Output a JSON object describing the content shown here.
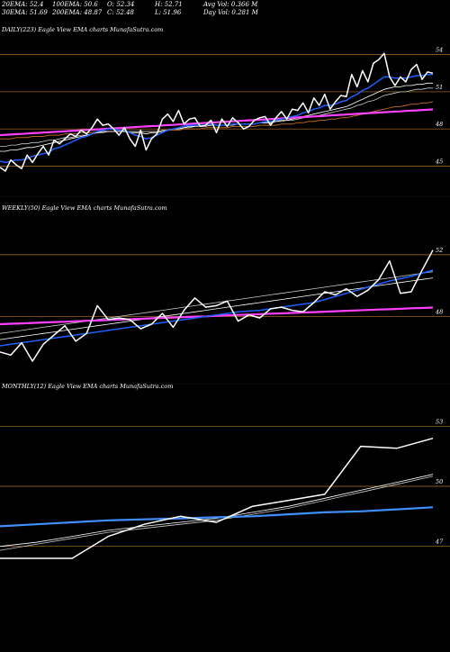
{
  "header": {
    "row1": [
      {
        "label": "20EMA:",
        "value": "52.4"
      },
      {
        "label": "100EMA:",
        "value": "50.6"
      },
      {
        "label": "O:",
        "value": "52.34"
      },
      {
        "label": "H:",
        "value": "52.71"
      },
      {
        "label": "Avg Vol:",
        "value": "0.366  M"
      }
    ],
    "row2": [
      {
        "label": "30EMA:",
        "value": "51.69"
      },
      {
        "label": "200EMA:",
        "value": "48.87"
      },
      {
        "label": "C:",
        "value": "52.48"
      },
      {
        "label": "L:",
        "value": "51.96"
      },
      {
        "label": "Day Vol:",
        "value": "0.281  M"
      }
    ]
  },
  "colors": {
    "background": "#000000",
    "price": "#ffffff",
    "ema_short": "#1f5fff",
    "ema_mid": "#ffffff",
    "ema_mid2": "#c8c8c8",
    "ema_long": "#b5651d",
    "ema_trend": "#ff40ff",
    "monthly_ema": "#3f8fff",
    "gridline": "#b8742a"
  },
  "chart_data": [
    {
      "type": "line",
      "title": "DAILY(223) Eagle   View  EMA charts MunafaSutra.com",
      "ylim": [
        43.0,
        55.5
      ],
      "y_ticks": [
        54,
        51,
        48,
        45
      ],
      "x": [
        0,
        6,
        12,
        18,
        24,
        30,
        36,
        42,
        48,
        54,
        60,
        66,
        72,
        78,
        84,
        90,
        96,
        102,
        108,
        114,
        120,
        126,
        132,
        138,
        144,
        150,
        156,
        162,
        168,
        174,
        180,
        186,
        192,
        198,
        204,
        210,
        216,
        222,
        228,
        234,
        240,
        246,
        252,
        258,
        264,
        270,
        276,
        282,
        288,
        294,
        300,
        306,
        312,
        318,
        324,
        330,
        336,
        342,
        348,
        354,
        360,
        366,
        372,
        378,
        384,
        390,
        396,
        402,
        408,
        414,
        420,
        426,
        432,
        438,
        444,
        450,
        456,
        462,
        468,
        474,
        480
      ],
      "series": [
        {
          "key": "price",
          "values": [
            44.9,
            44.6,
            45.5,
            45.1,
            44.8,
            45.9,
            45.3,
            46.0,
            46.6,
            45.9,
            47.1,
            46.8,
            47.2,
            47.6,
            47.4,
            47.9,
            47.6,
            48.1,
            48.8,
            48.3,
            48.4,
            48.0,
            47.5,
            48.1,
            47.2,
            46.6,
            47.9,
            46.3,
            47.2,
            47.6,
            48.8,
            49.2,
            48.6,
            49.5,
            48.4,
            48.8,
            48.9,
            48.2,
            48.3,
            48.7,
            47.7,
            48.8,
            48.2,
            48.9,
            48.5,
            48.0,
            48.2,
            48.7,
            48.9,
            49.0,
            48.3,
            48.9,
            49.4,
            48.8,
            49.6,
            49.5,
            50.1,
            49.3,
            50.5,
            49.9,
            50.8,
            49.6,
            50.2,
            50.7,
            50.6,
            52.4,
            51.4,
            52.7,
            51.8,
            53.3,
            53.6,
            54.1,
            52.2,
            51.5,
            52.2,
            51.8,
            52.8,
            53.2,
            52.0,
            52.6,
            52.5
          ]
        },
        {
          "key": "ema_short",
          "values": [
            45.4,
            45.3,
            45.4,
            45.5,
            45.5,
            45.6,
            45.8,
            45.9,
            46.0,
            46.1,
            46.4,
            46.5,
            46.7,
            46.9,
            47.1,
            47.3,
            47.4,
            47.6,
            47.8,
            47.9,
            48.0,
            48.0,
            47.9,
            47.9,
            47.7,
            47.5,
            47.4,
            47.2,
            47.3,
            47.5,
            47.7,
            47.9,
            48.0,
            48.1,
            48.2,
            48.3,
            48.3,
            48.3,
            48.3,
            48.4,
            48.3,
            48.3,
            48.3,
            48.4,
            48.4,
            48.4,
            48.4,
            48.4,
            48.5,
            48.6,
            48.6,
            48.7,
            48.8,
            48.9,
            49.0,
            49.1,
            49.3,
            49.4,
            49.6,
            49.7,
            49.9,
            49.9,
            50.0,
            50.2,
            50.3,
            50.6,
            50.8,
            51.1,
            51.3,
            51.6,
            51.9,
            52.2,
            52.2,
            52.1,
            52.1,
            52.1,
            52.2,
            52.3,
            52.3,
            52.4,
            52.4
          ]
        },
        {
          "key": "ema_mid",
          "values": [
            46.2,
            46.2,
            46.3,
            46.3,
            46.4,
            46.5,
            46.5,
            46.6,
            46.7,
            46.8,
            46.9,
            47.0,
            47.1,
            47.2,
            47.3,
            47.4,
            47.5,
            47.6,
            47.7,
            47.8,
            47.8,
            47.8,
            47.8,
            47.8,
            47.7,
            47.7,
            47.7,
            47.6,
            47.7,
            47.7,
            47.8,
            47.9,
            48.0,
            48.0,
            48.1,
            48.2,
            48.2,
            48.3,
            48.3,
            48.3,
            48.3,
            48.3,
            48.3,
            48.4,
            48.4,
            48.4,
            48.4,
            48.4,
            48.5,
            48.5,
            48.5,
            48.6,
            48.7,
            48.7,
            48.8,
            48.9,
            49.0,
            49.1,
            49.2,
            49.3,
            49.4,
            49.5,
            49.6,
            49.7,
            49.8,
            50.0,
            50.2,
            50.4,
            50.6,
            50.8,
            51.0,
            51.2,
            51.3,
            51.4,
            51.4,
            51.5,
            51.5,
            51.6,
            51.6,
            51.7,
            51.7
          ]
        },
        {
          "key": "ema_mid2",
          "values": [
            46.6,
            46.6,
            46.7,
            46.7,
            46.8,
            46.8,
            46.9,
            46.9,
            47.0,
            47.1,
            47.1,
            47.2,
            47.3,
            47.3,
            47.4,
            47.5,
            47.5,
            47.6,
            47.7,
            47.7,
            47.8,
            47.8,
            47.8,
            47.8,
            47.8,
            47.8,
            47.8,
            47.8,
            47.8,
            47.8,
            47.9,
            47.9,
            48.0,
            48.0,
            48.1,
            48.1,
            48.2,
            48.2,
            48.2,
            48.3,
            48.3,
            48.3,
            48.3,
            48.3,
            48.4,
            48.4,
            48.4,
            48.4,
            48.5,
            48.5,
            48.5,
            48.6,
            48.6,
            48.7,
            48.7,
            48.8,
            48.9,
            49.0,
            49.0,
            49.1,
            49.2,
            49.3,
            49.4,
            49.5,
            49.6,
            49.7,
            49.9,
            50.0,
            50.2,
            50.3,
            50.5,
            50.7,
            50.8,
            50.9,
            51.0,
            51.0,
            51.1,
            51.2,
            51.2,
            51.3,
            51.3
          ]
        },
        {
          "key": "ema_long",
          "values": [
            47.2,
            47.2,
            47.2,
            47.3,
            47.3,
            47.3,
            47.4,
            47.4,
            47.4,
            47.5,
            47.5,
            47.5,
            47.6,
            47.6,
            47.6,
            47.7,
            47.7,
            47.7,
            47.8,
            47.8,
            47.8,
            47.8,
            47.8,
            47.8,
            47.8,
            47.8,
            47.8,
            47.8,
            47.8,
            47.8,
            47.9,
            47.9,
            47.9,
            47.9,
            48.0,
            48.0,
            48.0,
            48.0,
            48.1,
            48.1,
            48.1,
            48.1,
            48.1,
            48.2,
            48.2,
            48.2,
            48.2,
            48.2,
            48.3,
            48.3,
            48.3,
            48.3,
            48.4,
            48.4,
            48.4,
            48.5,
            48.5,
            48.6,
            48.6,
            48.7,
            48.7,
            48.8,
            48.8,
            48.9,
            48.9,
            49.0,
            49.1,
            49.2,
            49.3,
            49.4,
            49.5,
            49.6,
            49.7,
            49.8,
            49.8,
            49.9,
            50.0,
            50.0,
            50.1,
            50.1,
            50.2
          ]
        },
        {
          "key": "ema_trend",
          "values": [
            47.5,
            47.53,
            47.55,
            47.58,
            47.6,
            47.63,
            47.66,
            47.68,
            47.71,
            47.73,
            47.76,
            47.79,
            47.81,
            47.84,
            47.86,
            47.89,
            47.92,
            47.94,
            47.97,
            47.99,
            48.02,
            48.05,
            48.07,
            48.1,
            48.12,
            48.15,
            48.18,
            48.2,
            48.23,
            48.25,
            48.28,
            48.31,
            48.33,
            48.36,
            48.38,
            48.41,
            48.44,
            48.46,
            48.49,
            48.51,
            48.54,
            48.57,
            48.59,
            48.62,
            48.64,
            48.67,
            48.7,
            48.72,
            48.75,
            48.77,
            48.8,
            48.83,
            48.85,
            48.88,
            48.9,
            48.93,
            48.96,
            48.98,
            49.01,
            49.03,
            49.06,
            49.09,
            49.11,
            49.14,
            49.16,
            49.19,
            49.22,
            49.24,
            49.27,
            49.29,
            49.32,
            49.35,
            49.37,
            49.4,
            49.42,
            49.45,
            49.48,
            49.5,
            49.53,
            49.55,
            49.58
          ]
        }
      ]
    },
    {
      "type": "line",
      "title": "WEEKLY(50) Eagle   View  EMA charts MunafaSutra.com",
      "ylim": [
        44.0,
        54.5
      ],
      "y_ticks": [
        52,
        48
      ],
      "x": [
        0,
        12,
        24,
        36,
        48,
        60,
        72,
        84,
        96,
        108,
        120,
        132,
        144,
        156,
        168,
        180,
        192,
        204,
        216,
        228,
        240,
        252,
        264,
        276,
        288,
        300,
        312,
        324,
        336,
        348,
        360,
        372,
        384,
        396,
        408,
        420,
        432,
        444,
        456,
        468,
        480
      ],
      "series": [
        {
          "key": "price",
          "values": [
            45.7,
            45.5,
            46.3,
            45.1,
            46.2,
            46.8,
            47.4,
            46.4,
            46.9,
            48.7,
            47.8,
            47.9,
            47.8,
            47.2,
            47.5,
            48.2,
            47.3,
            48.4,
            49.2,
            48.6,
            48.7,
            49.0,
            47.7,
            48.1,
            47.9,
            48.5,
            48.6,
            48.4,
            48.3,
            48.9,
            49.6,
            49.4,
            49.8,
            49.3,
            49.7,
            50.4,
            51.6,
            49.5,
            49.6,
            51.0,
            52.3
          ]
        },
        {
          "key": "ema_short",
          "values": [
            46.1,
            46.2,
            46.3,
            46.4,
            46.5,
            46.6,
            46.7,
            46.8,
            46.9,
            47.0,
            47.1,
            47.2,
            47.3,
            47.4,
            47.5,
            47.6,
            47.7,
            47.8,
            47.9,
            48.0,
            48.1,
            48.2,
            48.3,
            48.35,
            48.4,
            48.5,
            48.6,
            48.7,
            48.8,
            48.9,
            49.1,
            49.3,
            49.5,
            49.7,
            49.9,
            50.1,
            50.3,
            50.45,
            50.6,
            50.8,
            51.0
          ]
        },
        {
          "key": "ema_mid",
          "values": [
            46.5,
            46.6,
            46.7,
            46.8,
            46.9,
            47.0,
            47.1,
            47.2,
            47.3,
            47.4,
            47.5,
            47.6,
            47.7,
            47.8,
            47.9,
            48.0,
            48.1,
            48.2,
            48.3,
            48.4,
            48.5,
            48.6,
            48.7,
            48.8,
            48.9,
            49.0,
            49.1,
            49.2,
            49.3,
            49.4,
            49.5,
            49.6,
            49.7,
            49.8,
            49.9,
            50.0,
            50.1,
            50.2,
            50.3,
            50.4,
            50.5
          ]
        },
        {
          "key": "ema_mid2",
          "values": [
            46.9,
            47.0,
            47.1,
            47.2,
            47.3,
            47.4,
            47.5,
            47.6,
            47.7,
            47.8,
            47.9,
            48.0,
            48.1,
            48.2,
            48.3,
            48.4,
            48.5,
            48.6,
            48.7,
            48.8,
            48.9,
            49.0,
            49.1,
            49.2,
            49.3,
            49.4,
            49.5,
            49.6,
            49.7,
            49.8,
            49.9,
            50.0,
            50.1,
            50.2,
            50.3,
            50.4,
            50.5,
            50.6,
            50.7,
            50.8,
            50.9
          ]
        },
        {
          "key": "ema_trend",
          "values": [
            47.5,
            47.53,
            47.55,
            47.58,
            47.61,
            47.64,
            47.66,
            47.69,
            47.72,
            47.74,
            47.77,
            47.8,
            47.82,
            47.85,
            47.88,
            47.91,
            47.93,
            47.96,
            47.99,
            48.01,
            48.04,
            48.07,
            48.1,
            48.12,
            48.15,
            48.18,
            48.2,
            48.23,
            48.26,
            48.28,
            48.31,
            48.34,
            48.37,
            48.39,
            48.42,
            48.45,
            48.47,
            48.5,
            48.53,
            48.55,
            48.58
          ]
        }
      ]
    },
    {
      "type": "line",
      "title": "MONTHLY(12) Eagle   View  EMA charts MunafaSutra.com",
      "ylim": [
        45.5,
        54.5
      ],
      "y_ticks": [
        53,
        50,
        47
      ],
      "x": [
        0,
        40,
        80,
        120,
        160,
        200,
        240,
        280,
        320,
        360,
        400,
        440,
        480
      ],
      "series": [
        {
          "key": "price",
          "values": [
            46.4,
            46.4,
            46.4,
            47.5,
            48.1,
            48.5,
            48.2,
            49.0,
            49.3,
            49.6,
            52.0,
            51.9,
            52.4
          ]
        },
        {
          "key": "ema_short",
          "values": [
            48.0,
            48.1,
            48.2,
            48.3,
            48.35,
            48.4,
            48.45,
            48.5,
            48.6,
            48.7,
            48.75,
            48.85,
            48.95
          ]
        },
        {
          "key": "ema_mid",
          "values": [
            47.0,
            47.2,
            47.5,
            47.8,
            48.0,
            48.2,
            48.4,
            48.7,
            49.0,
            49.4,
            49.8,
            50.2,
            50.6
          ]
        },
        {
          "key": "ema_mid2",
          "values": [
            46.8,
            47.1,
            47.4,
            47.7,
            47.9,
            48.1,
            48.3,
            48.6,
            48.9,
            49.3,
            49.7,
            50.1,
            50.5
          ]
        }
      ]
    }
  ]
}
